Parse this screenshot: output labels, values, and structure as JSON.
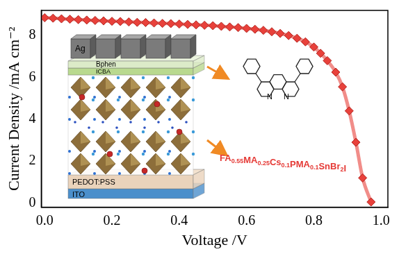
{
  "chart_data": {
    "type": "line",
    "x": [
      0,
      0.025,
      0.05,
      0.075,
      0.1,
      0.125,
      0.15,
      0.175,
      0.2,
      0.225,
      0.25,
      0.275,
      0.3,
      0.325,
      0.35,
      0.375,
      0.4,
      0.425,
      0.45,
      0.475,
      0.5,
      0.525,
      0.55,
      0.575,
      0.6,
      0.625,
      0.65,
      0.675,
      0.7,
      0.725,
      0.75,
      0.775,
      0.8,
      0.82,
      0.84,
      0.865,
      0.885,
      0.905,
      0.925,
      0.945,
      0.97
    ],
    "values": [
      8.85,
      8.83,
      8.8,
      8.78,
      8.76,
      8.74,
      8.72,
      8.7,
      8.68,
      8.67,
      8.65,
      8.63,
      8.62,
      8.6,
      8.58,
      8.57,
      8.55,
      8.53,
      8.51,
      8.49,
      8.47,
      8.44,
      8.41,
      8.38,
      8.34,
      8.3,
      8.25,
      8.18,
      8.1,
      8.0,
      7.87,
      7.7,
      7.45,
      7.15,
      6.8,
      6.25,
      5.55,
      4.4,
      2.9,
      1.2,
      0.05
    ],
    "color": "#e8413b",
    "marker": "diamond",
    "line_style": "solid",
    "xlim": [
      -0.01,
      1.02
    ],
    "ylim": [
      -0.2,
      9.2
    ],
    "xticks": [
      {
        "value": 0,
        "label": "0.0"
      },
      0.2,
      0.4,
      0.6,
      0.8,
      {
        "value": 1,
        "label": "1.0"
      }
    ],
    "yticks": [
      0,
      2,
      4,
      6,
      8
    ],
    "x_label": "Voltage /V",
    "y_label": "Current Density /mA cm⁻²",
    "grid": false,
    "annotations": {
      "layers": [
        "Ag",
        "Bphen",
        "ICBA",
        "PEDOT:PSS",
        "ITO"
      ],
      "perovskite": "FA0.55MA0.25Cs0.1PMA0.1SnBr2I",
      "molecule_atoms": [
        "N",
        "N"
      ]
    }
  }
}
